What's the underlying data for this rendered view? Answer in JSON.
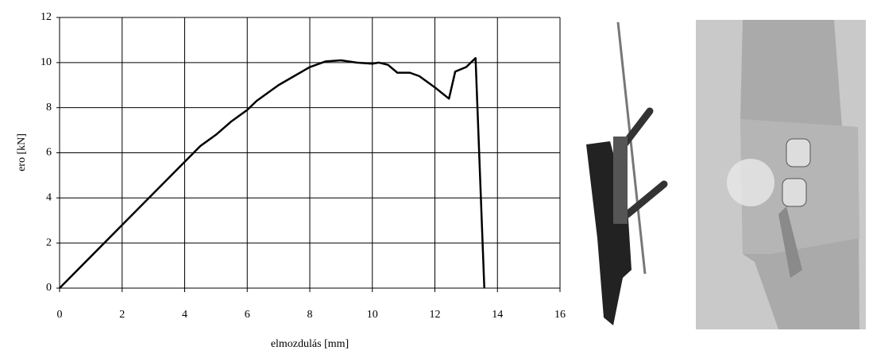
{
  "chart_data": {
    "type": "line",
    "xlabel": "elmozdulás [mm]",
    "ylabel": "ero [kN]",
    "x": [
      0,
      4.5,
      5,
      5.5,
      6,
      6.3,
      6.7,
      7,
      7.5,
      8,
      8.5,
      9,
      9.5,
      10,
      10.2,
      10.5,
      10.8,
      11.2,
      11.5,
      12,
      12.45,
      12.65,
      13,
      13.3,
      13.58
    ],
    "values": [
      0,
      6.3,
      6.8,
      7.4,
      7.9,
      8.3,
      8.7,
      9.0,
      9.4,
      9.8,
      10.05,
      10.1,
      10.0,
      9.95,
      10.0,
      9.9,
      9.55,
      9.55,
      9.4,
      8.9,
      8.4,
      9.6,
      9.8,
      10.2,
      0
    ],
    "color": "#000000",
    "xlim": [
      0,
      16
    ],
    "xticks": [
      0,
      2,
      4,
      6,
      8,
      10,
      12,
      14,
      16
    ],
    "ylim": [
      0,
      12
    ],
    "yticks": [
      0,
      2,
      4,
      6,
      8,
      10,
      12
    ],
    "grid": true
  }
}
